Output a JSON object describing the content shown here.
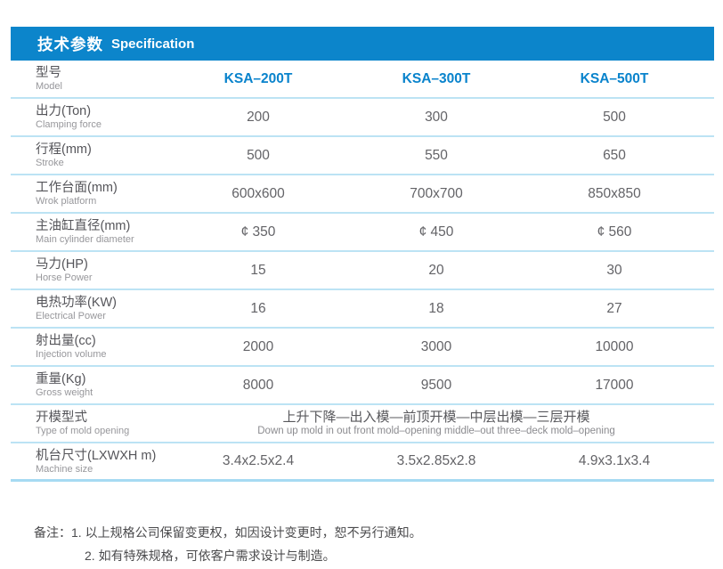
{
  "header": {
    "title_zh": "技术参数",
    "title_en": "Specification"
  },
  "table": {
    "model_row": {
      "label_zh": "型号",
      "label_en": "Model",
      "models": [
        "KSA–200T",
        "KSA–300T",
        "KSA–500T"
      ]
    },
    "rows": [
      {
        "label_zh": "出力(Ton)",
        "label_en": "Clamping force",
        "values": [
          "200",
          "300",
          "500"
        ]
      },
      {
        "label_zh": "行程(mm)",
        "label_en": "Stroke",
        "values": [
          "500",
          "550",
          "650"
        ]
      },
      {
        "label_zh": "工作台面(mm)",
        "label_en": "Wrok platform",
        "values": [
          "600x600",
          "700x700",
          "850x850"
        ]
      },
      {
        "label_zh": "主油缸直径(mm)",
        "label_en": "Main cylinder diameter",
        "values": [
          "¢ 350",
          "¢ 450",
          "¢ 560"
        ]
      },
      {
        "label_zh": "马力(HP)",
        "label_en": "Horse Power",
        "values": [
          "15",
          "20",
          "30"
        ]
      },
      {
        "label_zh": "电热功率(KW)",
        "label_en": "Electrical Power",
        "values": [
          "16",
          "18",
          "27"
        ]
      },
      {
        "label_zh": "射出量(cc)",
        "label_en": "Injection volume",
        "values": [
          "2000",
          "3000",
          "10000"
        ]
      },
      {
        "label_zh": "重量(Kg)",
        "label_en": "Gross weight",
        "values": [
          "8000",
          "9500",
          "17000"
        ]
      },
      {
        "label_zh": "开模型式",
        "label_en": "Type of mold opening",
        "span_zh": "上升下降—出入模—前顶开模—中层出模—三层开模",
        "span_en": "Down up mold in out front mold–opening middle–out three–deck mold–opening"
      },
      {
        "label_zh": "机台尺寸(LXWXH m)",
        "label_en": "Machine size",
        "values": [
          "3.4x2.5x2.4",
          "3.5x2.85x2.8",
          "4.9x3.1x3.4"
        ]
      }
    ]
  },
  "notes": {
    "prefix": "备注：",
    "line1": "1. 以上规格公司保留变更权，如因设计变更时，恕不另行通知。",
    "line2": "2. 如有特殊规格，可依客户需求设计与制造。"
  },
  "colors": {
    "header_blue": "#0c85cb",
    "model_blue": "#0983cc",
    "separator_blue": "#bce3f4"
  }
}
